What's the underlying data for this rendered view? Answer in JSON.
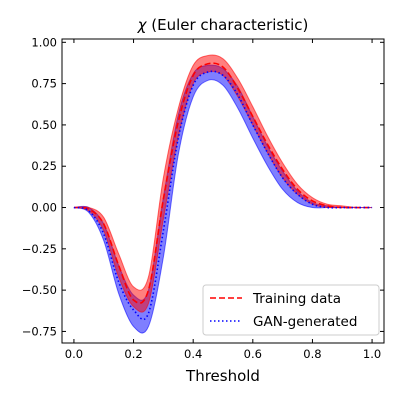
{
  "chart_data": {
    "type": "line",
    "title_symbol": "χ",
    "title_text": " (Euler characteristic)",
    "xlabel": "Threshold",
    "ylabel": "",
    "xlim": [
      -0.04,
      1.04
    ],
    "ylim": [
      -0.82,
      1.02
    ],
    "x_ticks": [
      0.0,
      0.2,
      0.4,
      0.6,
      0.8,
      1.0
    ],
    "x_tick_labels": [
      "0.0",
      "0.2",
      "0.4",
      "0.6",
      "0.8",
      "1.0"
    ],
    "y_ticks": [
      -0.75,
      -0.5,
      -0.25,
      0.0,
      0.25,
      0.5,
      0.75,
      1.0
    ],
    "y_tick_labels": [
      "−0.75",
      "−0.50",
      "−0.25",
      "0.00",
      "0.25",
      "0.50",
      "0.75",
      "1.00"
    ],
    "grid": false,
    "legend_position": "lower-right",
    "x": [
      0.0,
      0.05,
      0.1,
      0.15,
      0.2,
      0.25,
      0.3,
      0.35,
      0.4,
      0.45,
      0.5,
      0.55,
      0.6,
      0.65,
      0.7,
      0.75,
      0.8,
      0.85,
      0.9,
      0.95,
      1.0
    ],
    "series": [
      {
        "name": "Training data",
        "color": "#ff0000",
        "band_color": "#ff0000",
        "linestyle": "dashed",
        "values": [
          0.0,
          -0.01,
          -0.1,
          -0.35,
          -0.56,
          -0.5,
          0.05,
          0.52,
          0.8,
          0.87,
          0.85,
          0.72,
          0.55,
          0.38,
          0.23,
          0.11,
          0.04,
          0.01,
          0.0,
          0.0,
          0.0
        ],
        "lower": [
          0.0,
          -0.02,
          -0.14,
          -0.42,
          -0.6,
          -0.58,
          -0.07,
          0.43,
          0.75,
          0.82,
          0.8,
          0.67,
          0.5,
          0.33,
          0.18,
          0.08,
          0.02,
          0.0,
          0.0,
          0.0,
          0.0
        ],
        "upper": [
          0.0,
          0.0,
          -0.06,
          -0.28,
          -0.48,
          -0.42,
          0.18,
          0.6,
          0.86,
          0.92,
          0.9,
          0.78,
          0.61,
          0.43,
          0.27,
          0.14,
          0.06,
          0.02,
          0.01,
          0.0,
          0.0
        ]
      },
      {
        "name": "GAN-generated",
        "color": "#0000ff",
        "band_color": "#0000ff",
        "linestyle": "dotted",
        "values": [
          0.0,
          -0.02,
          -0.16,
          -0.45,
          -0.62,
          -0.64,
          -0.14,
          0.42,
          0.74,
          0.82,
          0.8,
          0.68,
          0.5,
          0.33,
          0.18,
          0.08,
          0.02,
          0.0,
          0.0,
          0.0,
          0.0
        ],
        "lower": [
          0.0,
          -0.03,
          -0.2,
          -0.52,
          -0.72,
          -0.72,
          -0.3,
          0.32,
          0.67,
          0.77,
          0.74,
          0.6,
          0.42,
          0.25,
          0.11,
          0.03,
          0.0,
          0.0,
          0.0,
          0.0,
          0.0
        ],
        "upper": [
          0.0,
          0.0,
          -0.1,
          -0.35,
          -0.53,
          -0.5,
          0.06,
          0.56,
          0.81,
          0.86,
          0.84,
          0.73,
          0.55,
          0.37,
          0.22,
          0.1,
          0.03,
          0.01,
          0.0,
          0.0,
          0.0
        ]
      }
    ]
  }
}
